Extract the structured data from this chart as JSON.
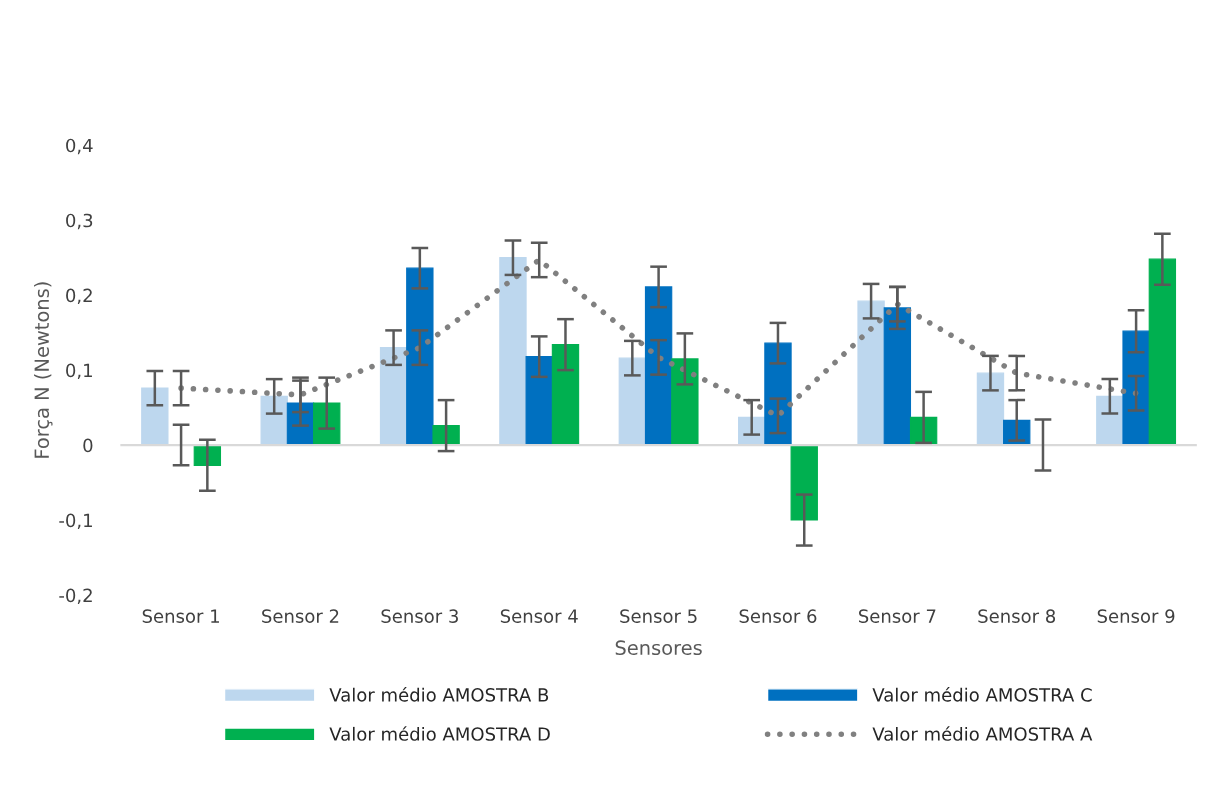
{
  "chart_data": {
    "type": "bar",
    "xlabel": "Sensores",
    "ylabel": "Força N (Newtons)",
    "categories": [
      "Sensor 1",
      "Sensor 2",
      "Sensor 3",
      "Sensor 4",
      "Sensor 5",
      "Sensor 6",
      "Sensor 7",
      "Sensor 8",
      "Sensor 9"
    ],
    "series": [
      {
        "name": "Valor médio AMOSTRA B",
        "color": "#bdd7ee",
        "values": [
          0.076,
          0.065,
          0.13,
          0.25,
          0.116,
          0.037,
          0.192,
          0.096,
          0.065
        ],
        "errors": [
          0.023,
          0.023,
          0.023,
          0.023,
          0.023,
          0.023,
          0.023,
          0.023,
          0.023
        ]
      },
      {
        "name": "Valor médio AMOSTRA C",
        "color": "#0070c0",
        "values": [
          0,
          0.056,
          0.236,
          0.118,
          0.211,
          0.136,
          0.183,
          0.033,
          0.152
        ],
        "errors": [
          0.027,
          0.03,
          0.027,
          0.027,
          0.027,
          0.027,
          0.028,
          0.027,
          0.028
        ]
      },
      {
        "name": "Valor médio AMOSTRA D",
        "color": "#00b050",
        "values": [
          -0.027,
          0.056,
          0.026,
          0.134,
          0.115,
          -0.1,
          0.037,
          0,
          0.248
        ],
        "errors": [
          0.034,
          0.034,
          0.034,
          0.034,
          0.034,
          0.034,
          0.034,
          0.034,
          0.034
        ]
      },
      {
        "name": "Valor médio AMOSTRA A",
        "type": "line",
        "color": "#808080",
        "line_style": "dotted",
        "values": [
          0.076,
          0.067,
          0.13,
          0.247,
          0.117,
          0.039,
          0.188,
          0.096,
          0.069
        ],
        "errors": [
          0.023,
          0.023,
          0.023,
          0.023,
          0.023,
          0.023,
          0.023,
          0.023,
          0.023
        ]
      }
    ],
    "ylim": [
      -0.2,
      0.4
    ],
    "yticks": [
      {
        "value": -0.2,
        "label": "-0,2"
      },
      {
        "value": -0.1,
        "label": "-0,1"
      },
      0,
      {
        "value": 0.1,
        "label": "0,1"
      },
      {
        "value": 0.2,
        "label": "0,2"
      },
      {
        "value": 0.3,
        "label": "0,3"
      },
      {
        "value": 0.4,
        "label": "0,4"
      }
    ],
    "legend": "bottom"
  }
}
